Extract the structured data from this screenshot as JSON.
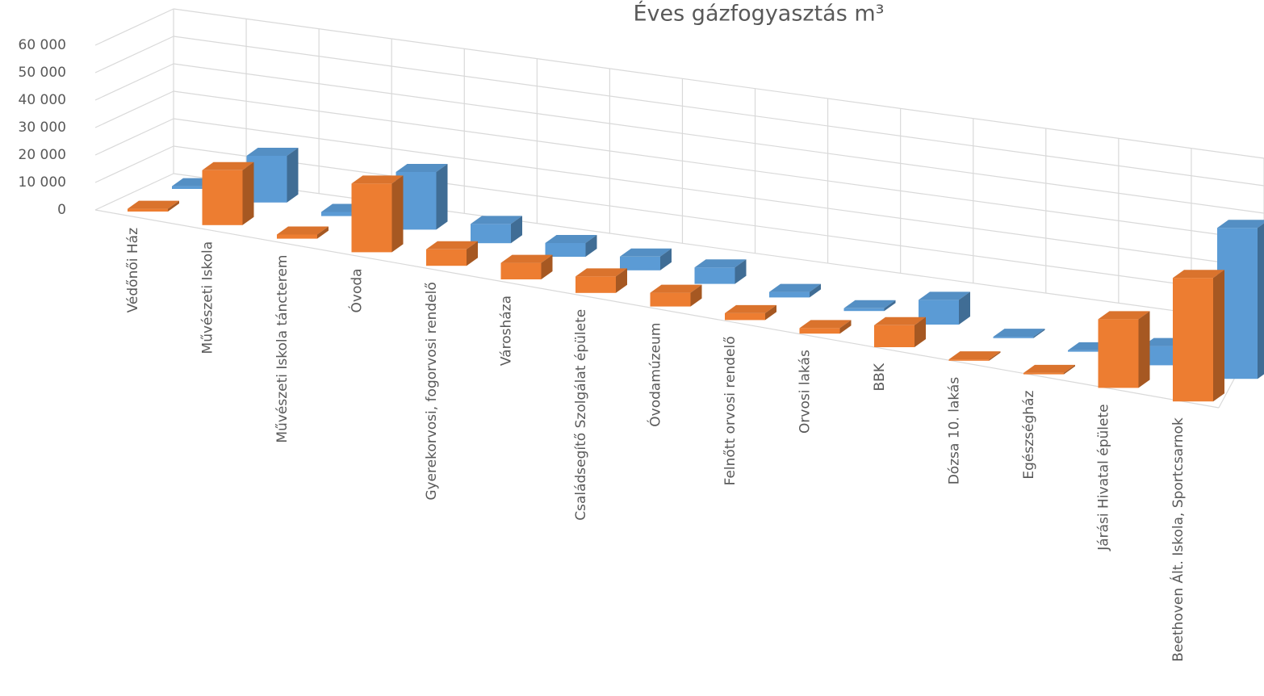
{
  "chart_data": {
    "type": "bar3d",
    "title": "Éves gázfogyasztás m³",
    "categories": [
      "Védőnői Ház",
      "Művészeti Iskola",
      "Művészeti Iskola táncterem",
      "Óvoda",
      "Gyerekorvosi, fogorvosi rendelő",
      "Városháza",
      "Családsegítő Szolgálat épülete",
      "Óvodamúzeum",
      "Felnőtt orvosi rendelő",
      "Orvosi lakás",
      "BBK",
      "Dózsa 10. lakás",
      "Egészségház",
      "Járási Hivatal épülete",
      "Beethoven Ált. Iskola, Sportcsarnok"
    ],
    "series": [
      {
        "color": "#ed7d31",
        "values": [
          1000,
          20000,
          1500,
          25000,
          6000,
          6000,
          6000,
          5000,
          2500,
          2000,
          8000,
          500,
          500,
          25000,
          45000
        ]
      },
      {
        "color": "#5b9bd5",
        "values": [
          1000,
          17000,
          1500,
          21000,
          7000,
          5000,
          5000,
          6000,
          2000,
          1000,
          9000,
          500,
          500,
          7000,
          55000
        ]
      }
    ],
    "ylim": [
      0,
      60000
    ],
    "yticks": [
      0,
      {
        "value": 10000,
        "label": "10 000"
      },
      {
        "value": 20000,
        "label": "20 000"
      },
      {
        "value": 30000,
        "label": "30 000"
      },
      {
        "value": 40000,
        "label": "40 000"
      },
      {
        "value": 50000,
        "label": "50 000"
      },
      {
        "value": 60000,
        "label": "60 000"
      }
    ],
    "grid": true
  }
}
